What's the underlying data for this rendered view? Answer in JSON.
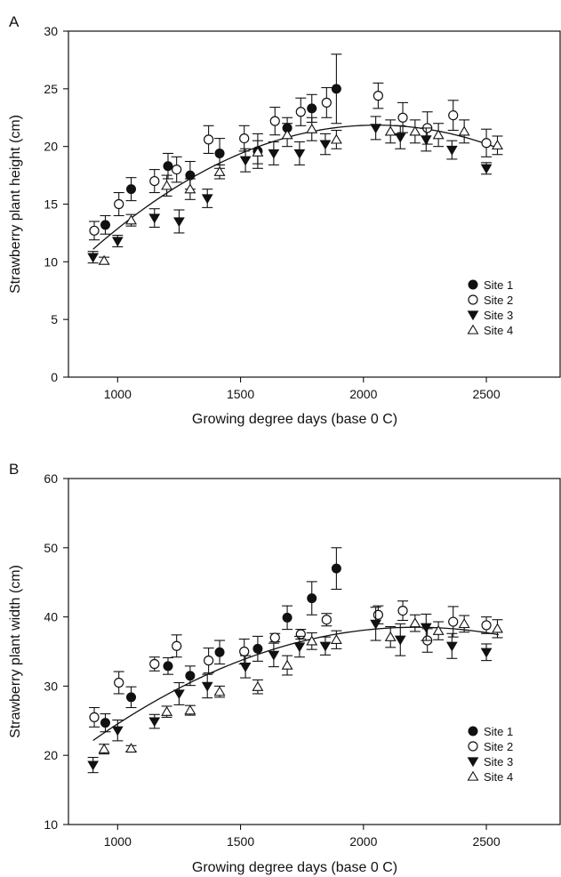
{
  "chart_data": [
    {
      "type": "scatter",
      "panel_label": "A",
      "xlabel": "Growing degree days (base 0 C)",
      "ylabel": "Strawberry plant height (cm)",
      "xlim": [
        800,
        2800
      ],
      "ylim": [
        0,
        30
      ],
      "x_ticks": [
        1000,
        1500,
        2000,
        2500
      ],
      "y_ticks": [
        0,
        5,
        10,
        15,
        20,
        25,
        30
      ],
      "grid": false,
      "legend_position": "right",
      "series": [
        {
          "name": "Site 1",
          "marker": "filled-circle",
          "points": [
            {
              "x": 950,
              "y": 13.2,
              "err": 0.8
            },
            {
              "x": 1055,
              "y": 16.3,
              "err": 1.0
            },
            {
              "x": 1205,
              "y": 18.3,
              "err": 1.1
            },
            {
              "x": 1295,
              "y": 17.5,
              "err": 1.2
            },
            {
              "x": 1415,
              "y": 19.4,
              "err": 1.3
            },
            {
              "x": 1570,
              "y": 19.6,
              "err": 1.5
            },
            {
              "x": 1690,
              "y": 21.6,
              "err": 0.9
            },
            {
              "x": 1790,
              "y": 23.3,
              "err": 1.2
            },
            {
              "x": 1890,
              "y": 25.0,
              "err": 3.0
            }
          ]
        },
        {
          "name": "Site 2",
          "marker": "open-circle",
          "points": [
            {
              "x": 905,
              "y": 12.7,
              "err": 0.8
            },
            {
              "x": 1005,
              "y": 15.0,
              "err": 1.0
            },
            {
              "x": 1150,
              "y": 17.0,
              "err": 1.0
            },
            {
              "x": 1240,
              "y": 18.0,
              "err": 1.1
            },
            {
              "x": 1370,
              "y": 20.6,
              "err": 1.2
            },
            {
              "x": 1515,
              "y": 20.7,
              "err": 1.1
            },
            {
              "x": 1640,
              "y": 22.2,
              "err": 1.2
            },
            {
              "x": 1745,
              "y": 23.0,
              "err": 1.2
            },
            {
              "x": 1850,
              "y": 23.8,
              "err": 1.3
            },
            {
              "x": 2060,
              "y": 24.4,
              "err": 1.1
            },
            {
              "x": 2160,
              "y": 22.5,
              "err": 1.3
            },
            {
              "x": 2260,
              "y": 21.6,
              "err": 1.4
            },
            {
              "x": 2365,
              "y": 22.7,
              "err": 1.3
            },
            {
              "x": 2500,
              "y": 20.3,
              "err": 1.2
            }
          ]
        },
        {
          "name": "Site 3",
          "marker": "filled-triangle-down",
          "points": [
            {
              "x": 900,
              "y": 10.4,
              "err": 0.5
            },
            {
              "x": 1000,
              "y": 11.8,
              "err": 0.5
            },
            {
              "x": 1150,
              "y": 13.8,
              "err": 0.8
            },
            {
              "x": 1250,
              "y": 13.5,
              "err": 1.0
            },
            {
              "x": 1365,
              "y": 15.5,
              "err": 0.8
            },
            {
              "x": 1520,
              "y": 18.8,
              "err": 1.0
            },
            {
              "x": 1635,
              "y": 19.4,
              "err": 1.0
            },
            {
              "x": 1740,
              "y": 19.4,
              "err": 1.0
            },
            {
              "x": 1845,
              "y": 20.2,
              "err": 0.9
            },
            {
              "x": 2050,
              "y": 21.6,
              "err": 1.0
            },
            {
              "x": 2150,
              "y": 20.8,
              "err": 1.0
            },
            {
              "x": 2255,
              "y": 20.6,
              "err": 1.0
            },
            {
              "x": 2360,
              "y": 19.7,
              "err": 0.8
            },
            {
              "x": 2500,
              "y": 18.1,
              "err": 0.5
            }
          ]
        },
        {
          "name": "Site 4",
          "marker": "open-triangle-up",
          "points": [
            {
              "x": 945,
              "y": 10.1,
              "err": 0.3
            },
            {
              "x": 1055,
              "y": 13.6,
              "err": 0.5
            },
            {
              "x": 1200,
              "y": 16.6,
              "err": 0.9
            },
            {
              "x": 1295,
              "y": 16.3,
              "err": 0.9
            },
            {
              "x": 1415,
              "y": 17.8,
              "err": 0.6
            },
            {
              "x": 1570,
              "y": 19.5,
              "err": 1.0
            },
            {
              "x": 1690,
              "y": 21.0,
              "err": 1.0
            },
            {
              "x": 1790,
              "y": 21.5,
              "err": 1.0
            },
            {
              "x": 1890,
              "y": 20.6,
              "err": 0.8
            },
            {
              "x": 2110,
              "y": 21.3,
              "err": 1.0
            },
            {
              "x": 2210,
              "y": 21.3,
              "err": 1.0
            },
            {
              "x": 2305,
              "y": 21.0,
              "err": 1.0
            },
            {
              "x": 2410,
              "y": 21.3,
              "err": 1.0
            },
            {
              "x": 2545,
              "y": 20.1,
              "err": 0.8
            }
          ]
        }
      ],
      "fit_curve": {
        "type": "quadratic",
        "x_range": [
          900,
          2550
        ],
        "points": [
          [
            900,
            11.2
          ],
          [
            1200,
            15.8
          ],
          [
            1500,
            19.3
          ],
          [
            1800,
            21.4
          ],
          [
            2000,
            22.0
          ],
          [
            2200,
            21.6
          ],
          [
            2550,
            19.8
          ]
        ]
      }
    },
    {
      "type": "scatter",
      "panel_label": "B",
      "xlabel": "Growing degree days (base 0 C)",
      "ylabel": "Strawberry plant width (cm)",
      "xlim": [
        800,
        2800
      ],
      "ylim": [
        10,
        60
      ],
      "x_ticks": [
        1000,
        1500,
        2000,
        2500
      ],
      "y_ticks": [
        10,
        20,
        30,
        40,
        50,
        60
      ],
      "grid": false,
      "legend_position": "right",
      "series": [
        {
          "name": "Site 1",
          "marker": "filled-circle",
          "points": [
            {
              "x": 950,
              "y": 24.7,
              "err": 1.3
            },
            {
              "x": 1055,
              "y": 28.4,
              "err": 1.5
            },
            {
              "x": 1205,
              "y": 32.9,
              "err": 1.2
            },
            {
              "x": 1295,
              "y": 31.5,
              "err": 1.4
            },
            {
              "x": 1415,
              "y": 34.9,
              "err": 1.7
            },
            {
              "x": 1570,
              "y": 35.4,
              "err": 1.8
            },
            {
              "x": 1690,
              "y": 39.9,
              "err": 1.7
            },
            {
              "x": 1790,
              "y": 42.7,
              "err": 2.4
            },
            {
              "x": 1890,
              "y": 47.0,
              "err": 3.0
            }
          ]
        },
        {
          "name": "Site 2",
          "marker": "open-circle",
          "points": [
            {
              "x": 905,
              "y": 25.5,
              "err": 1.4
            },
            {
              "x": 1005,
              "y": 30.5,
              "err": 1.6
            },
            {
              "x": 1150,
              "y": 33.2,
              "err": 1.0
            },
            {
              "x": 1240,
              "y": 35.8,
              "err": 1.6
            },
            {
              "x": 1370,
              "y": 33.7,
              "err": 1.8
            },
            {
              "x": 1515,
              "y": 35.0,
              "err": 1.8
            },
            {
              "x": 1640,
              "y": 37.0,
              "err": 0.6
            },
            {
              "x": 1745,
              "y": 37.5,
              "err": 0.7
            },
            {
              "x": 1850,
              "y": 39.6,
              "err": 0.9
            },
            {
              "x": 2060,
              "y": 40.3,
              "err": 1.3
            },
            {
              "x": 2160,
              "y": 40.9,
              "err": 1.4
            },
            {
              "x": 2260,
              "y": 36.6,
              "err": 1.7
            },
            {
              "x": 2365,
              "y": 39.3,
              "err": 2.2
            },
            {
              "x": 2500,
              "y": 38.8,
              "err": 1.2
            }
          ]
        },
        {
          "name": "Site 3",
          "marker": "filled-triangle-down",
          "points": [
            {
              "x": 900,
              "y": 18.6,
              "err": 1.1
            },
            {
              "x": 1000,
              "y": 23.6,
              "err": 1.5
            },
            {
              "x": 1150,
              "y": 24.9,
              "err": 1.0
            },
            {
              "x": 1250,
              "y": 28.9,
              "err": 1.6
            },
            {
              "x": 1365,
              "y": 30.0,
              "err": 1.7
            },
            {
              "x": 1520,
              "y": 32.8,
              "err": 1.6
            },
            {
              "x": 1635,
              "y": 34.5,
              "err": 1.7
            },
            {
              "x": 1740,
              "y": 35.7,
              "err": 1.5
            },
            {
              "x": 1845,
              "y": 35.8,
              "err": 1.3
            },
            {
              "x": 2050,
              "y": 39.0,
              "err": 2.4
            },
            {
              "x": 2150,
              "y": 36.7,
              "err": 2.3
            },
            {
              "x": 2255,
              "y": 38.5,
              "err": 1.9
            },
            {
              "x": 2360,
              "y": 35.8,
              "err": 1.8
            },
            {
              "x": 2500,
              "y": 34.9,
              "err": 1.2
            }
          ]
        },
        {
          "name": "Site 4",
          "marker": "open-triangle-up",
          "points": [
            {
              "x": 945,
              "y": 20.9,
              "err": 0.7
            },
            {
              "x": 1055,
              "y": 21.0,
              "err": 0.4
            },
            {
              "x": 1200,
              "y": 26.3,
              "err": 0.8
            },
            {
              "x": 1295,
              "y": 26.5,
              "err": 0.7
            },
            {
              "x": 1415,
              "y": 29.2,
              "err": 0.8
            },
            {
              "x": 1570,
              "y": 29.9,
              "err": 1.0
            },
            {
              "x": 1690,
              "y": 33.0,
              "err": 1.4
            },
            {
              "x": 1790,
              "y": 36.5,
              "err": 1.2
            },
            {
              "x": 1890,
              "y": 36.7,
              "err": 1.3
            },
            {
              "x": 2110,
              "y": 37.1,
              "err": 1.5
            },
            {
              "x": 2210,
              "y": 39.1,
              "err": 1.2
            },
            {
              "x": 2305,
              "y": 38.0,
              "err": 1.3
            },
            {
              "x": 2410,
              "y": 39.0,
              "err": 1.2
            },
            {
              "x": 2545,
              "y": 38.3,
              "err": 1.3
            }
          ]
        }
      ],
      "fit_curve": {
        "type": "quadratic",
        "x_range": [
          900,
          2550
        ],
        "points": [
          [
            900,
            22.3
          ],
          [
            1200,
            28.6
          ],
          [
            1500,
            33.5
          ],
          [
            1800,
            36.9
          ],
          [
            2000,
            38.3
          ],
          [
            2200,
            38.6
          ],
          [
            2550,
            37.3
          ]
        ]
      }
    }
  ],
  "colors": {
    "ink": "#111111",
    "background": "#ffffff"
  }
}
